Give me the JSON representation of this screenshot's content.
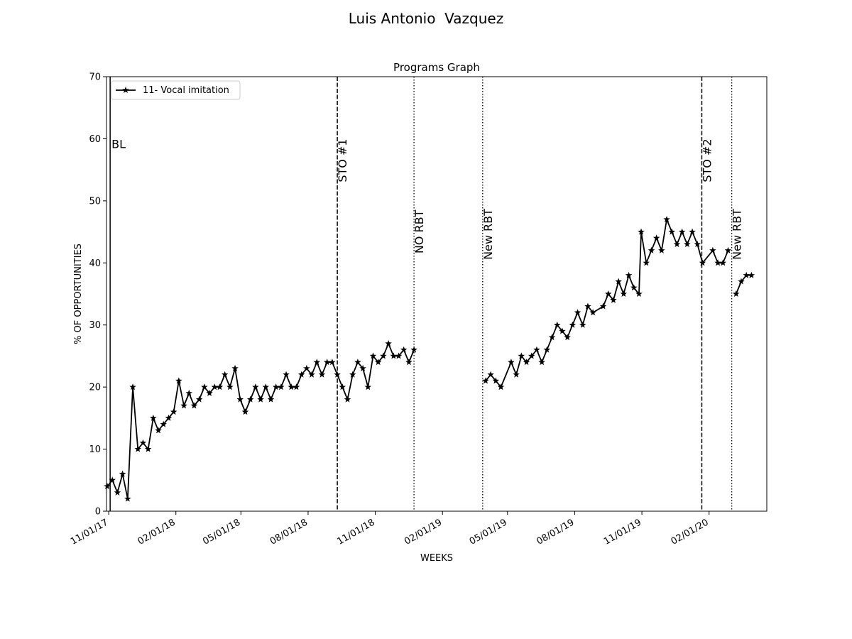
{
  "figure": {
    "title": "Luis Antonio  Vazquez"
  },
  "chart_data": {
    "type": "line",
    "title": "Programs Graph",
    "xlabel": "WEEKS",
    "ylabel": "% OF OPPORTUNITIES",
    "ylim": [
      0,
      70
    ],
    "yticks": [
      0,
      10,
      20,
      30,
      40,
      50,
      60,
      70
    ],
    "xlim": [
      "2017-10-29",
      "2020-04-20"
    ],
    "xticks": [
      {
        "date": "2017-11-01",
        "label": "11/01/17"
      },
      {
        "date": "2018-02-01",
        "label": "02/01/18"
      },
      {
        "date": "2018-05-01",
        "label": "05/01/18"
      },
      {
        "date": "2018-08-01",
        "label": "08/01/18"
      },
      {
        "date": "2018-11-01",
        "label": "11/01/18"
      },
      {
        "date": "2019-02-01",
        "label": "02/01/19"
      },
      {
        "date": "2019-05-01",
        "label": "05/01/19"
      },
      {
        "date": "2019-08-01",
        "label": "08/01/19"
      },
      {
        "date": "2019-11-01",
        "label": "11/01/19"
      },
      {
        "date": "2020-02-01",
        "label": "02/01/20"
      }
    ],
    "grid": false,
    "legend": {
      "placement": "top-left"
    },
    "series": [
      {
        "name": "11- Vocal imitation",
        "color": "#000000",
        "marker": "star",
        "segments": [
          [
            [
              "2017-10-30",
              4
            ],
            [
              "2017-11-06",
              5
            ],
            [
              "2017-11-13",
              3
            ],
            [
              "2017-11-20",
              6
            ],
            [
              "2017-11-27",
              2
            ],
            [
              "2017-12-04",
              20
            ],
            [
              "2017-12-11",
              10
            ],
            [
              "2017-12-18",
              11
            ],
            [
              "2017-12-25",
              10
            ],
            [
              "2018-01-01",
              15
            ],
            [
              "2018-01-08",
              13
            ],
            [
              "2018-01-15",
              14
            ],
            [
              "2018-01-22",
              15
            ],
            [
              "2018-01-29",
              16
            ],
            [
              "2018-02-05",
              21
            ],
            [
              "2018-02-12",
              17
            ],
            [
              "2018-02-19",
              19
            ],
            [
              "2018-02-26",
              17
            ],
            [
              "2018-03-05",
              18
            ],
            [
              "2018-03-12",
              20
            ],
            [
              "2018-03-19",
              19
            ],
            [
              "2018-03-26",
              20
            ],
            [
              "2018-04-02",
              20
            ],
            [
              "2018-04-09",
              22
            ],
            [
              "2018-04-16",
              20
            ],
            [
              "2018-04-23",
              23
            ],
            [
              "2018-04-30",
              18
            ],
            [
              "2018-05-07",
              16
            ],
            [
              "2018-05-14",
              18
            ],
            [
              "2018-05-21",
              20
            ],
            [
              "2018-05-28",
              18
            ],
            [
              "2018-06-04",
              20
            ],
            [
              "2018-06-11",
              18
            ],
            [
              "2018-06-18",
              20
            ],
            [
              "2018-06-25",
              20
            ],
            [
              "2018-07-02",
              22
            ],
            [
              "2018-07-09",
              20
            ],
            [
              "2018-07-16",
              20
            ],
            [
              "2018-07-23",
              22
            ],
            [
              "2018-07-30",
              23
            ],
            [
              "2018-08-06",
              22
            ],
            [
              "2018-08-13",
              24
            ],
            [
              "2018-08-20",
              22
            ],
            [
              "2018-08-27",
              24
            ],
            [
              "2018-09-03",
              24
            ],
            [
              "2018-09-10",
              22
            ],
            [
              "2018-09-17",
              20
            ],
            [
              "2018-09-24",
              18
            ],
            [
              "2018-10-01",
              22
            ],
            [
              "2018-10-08",
              24
            ],
            [
              "2018-10-15",
              23
            ],
            [
              "2018-10-22",
              20
            ],
            [
              "2018-10-29",
              25
            ],
            [
              "2018-11-05",
              24
            ],
            [
              "2018-11-12",
              25
            ],
            [
              "2018-11-19",
              27
            ],
            [
              "2018-11-26",
              25
            ],
            [
              "2018-12-03",
              25
            ],
            [
              "2018-12-10",
              26
            ],
            [
              "2018-12-17",
              24
            ],
            [
              "2018-12-24",
              26
            ]
          ],
          [
            [
              "2019-04-01",
              21
            ],
            [
              "2019-04-08",
              22
            ],
            [
              "2019-04-15",
              21
            ],
            [
              "2019-04-22",
              20
            ],
            [
              "2019-05-06",
              24
            ],
            [
              "2019-05-13",
              22
            ],
            [
              "2019-05-20",
              25
            ],
            [
              "2019-05-27",
              24
            ],
            [
              "2019-06-03",
              25
            ],
            [
              "2019-06-10",
              26
            ],
            [
              "2019-06-17",
              24
            ],
            [
              "2019-06-24",
              26
            ],
            [
              "2019-07-01",
              28
            ],
            [
              "2019-07-08",
              30
            ],
            [
              "2019-07-15",
              29
            ],
            [
              "2019-07-22",
              28
            ],
            [
              "2019-07-29",
              30
            ],
            [
              "2019-08-05",
              32
            ],
            [
              "2019-08-12",
              30
            ],
            [
              "2019-08-19",
              33
            ],
            [
              "2019-08-26",
              32
            ],
            [
              "2019-09-09",
              33
            ],
            [
              "2019-09-16",
              35
            ],
            [
              "2019-09-23",
              34
            ],
            [
              "2019-09-30",
              37
            ],
            [
              "2019-10-07",
              35
            ],
            [
              "2019-10-14",
              38
            ],
            [
              "2019-10-21",
              36
            ],
            [
              "2019-10-28",
              35
            ],
            [
              "2019-10-31",
              45
            ],
            [
              "2019-11-07",
              40
            ],
            [
              "2019-11-14",
              42
            ],
            [
              "2019-11-21",
              44
            ],
            [
              "2019-11-28",
              42
            ],
            [
              "2019-12-05",
              47
            ],
            [
              "2019-12-12",
              45
            ],
            [
              "2019-12-19",
              43
            ],
            [
              "2019-12-26",
              45
            ],
            [
              "2020-01-02",
              43
            ],
            [
              "2020-01-09",
              45
            ],
            [
              "2020-01-16",
              43
            ],
            [
              "2020-01-23",
              40
            ],
            [
              "2020-02-06",
              42
            ],
            [
              "2020-02-13",
              40
            ],
            [
              "2020-02-20",
              40
            ],
            [
              "2020-02-27",
              42
            ]
          ],
          [
            [
              "2020-03-09",
              35
            ],
            [
              "2020-03-16",
              37
            ],
            [
              "2020-03-23",
              38
            ],
            [
              "2020-03-30",
              38
            ]
          ]
        ]
      }
    ],
    "phase_lines": [
      {
        "date": "2017-11-03",
        "label": "BL",
        "style": "solid",
        "label_y": 58.5,
        "rotated": false
      },
      {
        "date": "2018-09-10",
        "label": "STO #1",
        "style": "dashed",
        "label_y": 53,
        "rotated": true
      },
      {
        "date": "2018-12-24",
        "label": "NO RBT",
        "style": "dotted",
        "label_y": 41.5,
        "rotated": true
      },
      {
        "date": "2019-03-28",
        "label": "New RBT",
        "style": "dotted",
        "label_y": 40.5,
        "rotated": true
      },
      {
        "date": "2020-01-22",
        "label": "STO #2",
        "style": "dashed",
        "label_y": 53,
        "rotated": true
      },
      {
        "date": "2020-03-03",
        "label": "New RBT",
        "style": "dotted",
        "label_y": 40.5,
        "rotated": true
      }
    ]
  }
}
